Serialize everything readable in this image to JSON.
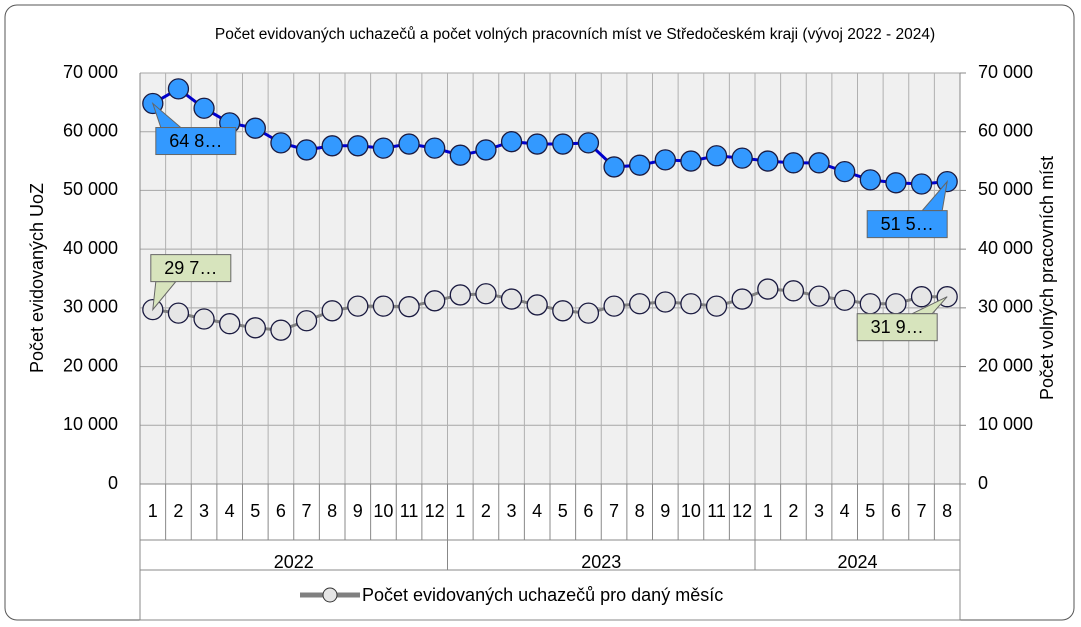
{
  "chart_data": {
    "type": "line",
    "title": "Počet evidovaných uchazečů a počet volných pracovních míst ve Středočeském kraji (vývoj 2022 - 2024)",
    "ylabel": "Počet evidovaných UoZ",
    "y2label": "Počet volných pracovních míst",
    "groups": [
      {
        "label": "2022",
        "months": [
          "1",
          "2",
          "3",
          "4",
          "5",
          "6",
          "7",
          "8",
          "9",
          "10",
          "11",
          "12"
        ]
      },
      {
        "label": "2023",
        "months": [
          "1",
          "2",
          "3",
          "4",
          "5",
          "6",
          "7",
          "8",
          "9",
          "10",
          "11",
          "12"
        ]
      },
      {
        "label": "2024",
        "months": [
          "1",
          "2",
          "3",
          "4",
          "5",
          "6",
          "7",
          "8"
        ]
      }
    ],
    "series": [
      {
        "color": "#3399ff",
        "line_color": "#0000cc",
        "values": [
          64800,
          67300,
          64000,
          61500,
          60600,
          58100,
          56900,
          57600,
          57600,
          57200,
          57900,
          57200,
          56000,
          56900,
          58300,
          57900,
          57900,
          58100,
          54000,
          54300,
          55200,
          55000,
          55900,
          55500,
          55000,
          54700,
          54700,
          53200,
          51800,
          51300,
          51100,
          51500
        ],
        "value_labels": [
          "64 8…",
          null,
          null,
          null,
          null,
          null,
          null,
          null,
          null,
          null,
          null,
          null,
          null,
          null,
          null,
          null,
          null,
          null,
          null,
          null,
          null,
          null,
          null,
          null,
          null,
          null,
          null,
          null,
          null,
          null,
          null,
          "51 5…"
        ]
      },
      {
        "name": "Počet evidovaných uchazečů pro daný měsíc",
        "color": "#e6e6e6",
        "line_color": "#808080",
        "label_color": "#d7e4bd",
        "values": [
          29700,
          29100,
          28100,
          27300,
          26600,
          26200,
          27800,
          29500,
          30300,
          30300,
          30200,
          31200,
          32200,
          32400,
          31500,
          30500,
          29500,
          29100,
          30300,
          30700,
          31000,
          30700,
          30300,
          31500,
          33200,
          32900,
          32000,
          31300,
          30700,
          30700,
          31900,
          31900
        ],
        "value_labels": [
          "29 7…",
          null,
          null,
          null,
          null,
          null,
          null,
          null,
          null,
          null,
          null,
          null,
          null,
          null,
          null,
          null,
          null,
          null,
          null,
          null,
          null,
          null,
          null,
          null,
          null,
          null,
          null,
          null,
          null,
          null,
          null,
          "31 9…"
        ]
      }
    ],
    "ylim": [
      0,
      70000
    ],
    "yticks": [
      {
        "value": 0,
        "label": "0"
      },
      {
        "value": 10000,
        "label": "10 000"
      },
      {
        "value": 20000,
        "label": "20 000"
      },
      {
        "value": 30000,
        "label": "30 000"
      },
      {
        "value": 40000,
        "label": "40 000"
      },
      {
        "value": 50000,
        "label": "50 000"
      },
      {
        "value": 60000,
        "label": "60 000"
      },
      {
        "value": 70000,
        "label": "70 000"
      }
    ],
    "y2lim": [
      0,
      70000
    ],
    "y2ticks": [
      {
        "value": 0,
        "label": "0"
      },
      {
        "value": 10000,
        "label": "10 000"
      },
      {
        "value": 20000,
        "label": "20 000"
      },
      {
        "value": 30000,
        "label": "30 000"
      },
      {
        "value": 40000,
        "label": "40 000"
      },
      {
        "value": 50000,
        "label": "50 000"
      },
      {
        "value": 60000,
        "label": "60 000"
      },
      {
        "value": 70000,
        "label": "70 000"
      }
    ],
    "grid": true
  }
}
